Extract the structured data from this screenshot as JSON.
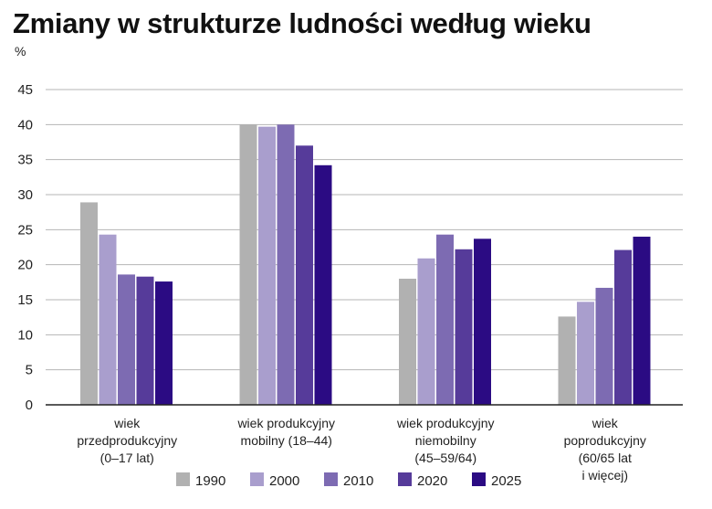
{
  "title": "Zmiany w strukturze ludności według wieku",
  "unit": "%",
  "chart_data": {
    "type": "bar",
    "title": "Zmiany w strukturze ludności według wieku",
    "ylabel": "%",
    "ylim": [
      0,
      45
    ],
    "yticks": [
      0,
      5,
      10,
      15,
      20,
      25,
      30,
      35,
      40,
      45
    ],
    "grid": true,
    "legend": "bottom",
    "categories": [
      [
        "wiek",
        "przedprodukcyjny",
        "(0–17 lat)"
      ],
      [
        "wiek produkcyjny",
        "mobilny (18–44)"
      ],
      [
        "wiek produkcyjny",
        "niemobilny",
        "(45–59/64)"
      ],
      [
        "wiek",
        "poprodukcyjny",
        "(60/65 lat",
        "i więcej)"
      ]
    ],
    "series": [
      {
        "name": "1990",
        "color": "#b1b1b1",
        "values": [
          28.9,
          40.0,
          18.0,
          12.6
        ]
      },
      {
        "name": "2000",
        "color": "#a99ecd",
        "values": [
          24.3,
          39.7,
          20.9,
          14.7
        ]
      },
      {
        "name": "2010",
        "color": "#7d6bb2",
        "values": [
          18.6,
          40.0,
          24.3,
          16.7
        ]
      },
      {
        "name": "2020",
        "color": "#563b9a",
        "values": [
          18.3,
          37.0,
          22.2,
          22.1
        ]
      },
      {
        "name": "2025",
        "color": "#2b0b83",
        "values": [
          17.6,
          34.2,
          23.7,
          24.0
        ]
      }
    ]
  }
}
